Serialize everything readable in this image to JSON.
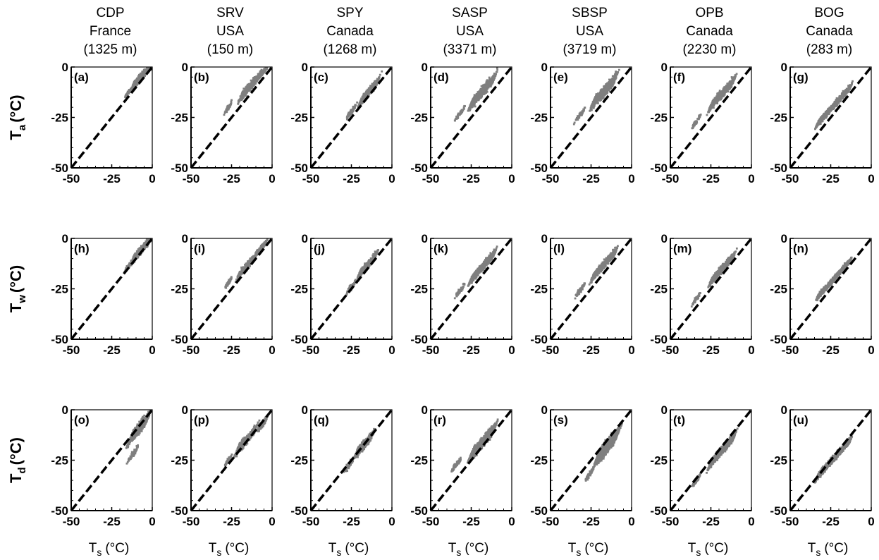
{
  "sites": [
    {
      "code": "CDP",
      "country": "France",
      "elev": "(1325 m)"
    },
    {
      "code": "SRV",
      "country": "USA",
      "elev": "(150 m)"
    },
    {
      "code": "SPY",
      "country": "Canada",
      "elev": "(1268 m)"
    },
    {
      "code": "SASP",
      "country": "USA",
      "elev": "(3371 m)"
    },
    {
      "code": "SBSP",
      "country": "USA",
      "elev": "(3719 m)"
    },
    {
      "code": "OPB",
      "country": "Canada",
      "elev": "(2230 m)"
    },
    {
      "code": "BOG",
      "country": "Canada",
      "elev": "(283 m)"
    }
  ],
  "rows": [
    {
      "ylabel": "T",
      "ysub": "a",
      "yunit": "(°C)"
    },
    {
      "ylabel": "T",
      "ysub": "w",
      "yunit": "(°C)"
    },
    {
      "ylabel": "T",
      "ysub": "d",
      "yunit": "(°C)"
    }
  ],
  "xlabel": {
    "main": "T",
    "sub": "s",
    "unit": "(°C)"
  },
  "chart_data": {
    "type": "scatter",
    "layout": "3 rows x 7 columns small multiples",
    "x_quantity": "Ts (°C)",
    "xlim": [
      -50,
      0
    ],
    "ylim": [
      -50,
      0
    ],
    "xticks": [
      "-50",
      "-25",
      "0"
    ],
    "yticks": [
      "0",
      "-25",
      "-50"
    ],
    "reference_line": {
      "style": "dashed",
      "color": "#000000",
      "from": [
        -50,
        -50
      ],
      "to": [
        0,
        0
      ]
    },
    "point_color": "#7f7f7f",
    "panels": [
      {
        "label": "(a)",
        "row": 0,
        "col": 0,
        "clusters": [
          {
            "x": -7,
            "y": -5,
            "w": 11,
            "h": 6,
            "n": 520
          },
          {
            "x": -15,
            "y": -13,
            "w": 3,
            "h": 3,
            "n": 40
          }
        ]
      },
      {
        "label": "(b)",
        "row": 0,
        "col": 1,
        "clusters": [
          {
            "x": -14,
            "y": -10,
            "w": 12,
            "h": 7,
            "n": 260
          },
          {
            "x": -6,
            "y": -3,
            "w": 5,
            "h": 3,
            "n": 220
          },
          {
            "x": -27,
            "y": -20,
            "w": 3,
            "h": 5,
            "n": 60
          }
        ]
      },
      {
        "label": "(c)",
        "row": 0,
        "col": 2,
        "clusters": [
          {
            "x": -14,
            "y": -12,
            "w": 11,
            "h": 7,
            "n": 300
          },
          {
            "x": -25,
            "y": -22,
            "w": 5,
            "h": 5,
            "n": 80
          }
        ]
      },
      {
        "label": "(d)",
        "row": 0,
        "col": 3,
        "clusters": [
          {
            "x": -18,
            "y": -12,
            "w": 15,
            "h": 8,
            "n": 620
          },
          {
            "x": -32,
            "y": -23,
            "w": 5,
            "h": 4,
            "n": 60
          }
        ]
      },
      {
        "label": "(e)",
        "row": 0,
        "col": 4,
        "clusters": [
          {
            "x": -17,
            "y": -12,
            "w": 15,
            "h": 8,
            "n": 620
          },
          {
            "x": -32,
            "y": -24,
            "w": 5,
            "h": 4,
            "n": 60
          }
        ]
      },
      {
        "label": "(f)",
        "row": 0,
        "col": 5,
        "clusters": [
          {
            "x": -18,
            "y": -13,
            "w": 15,
            "h": 7,
            "n": 520
          },
          {
            "x": -34,
            "y": -27,
            "w": 4,
            "h": 4,
            "n": 60
          }
        ]
      },
      {
        "label": "(g)",
        "row": 0,
        "col": 6,
        "clusters": [
          {
            "x": -23,
            "y": -19,
            "w": 21,
            "h": 5,
            "n": 720
          }
        ]
      },
      {
        "label": "(h)",
        "row": 1,
        "col": 0,
        "clusters": [
          {
            "x": -7,
            "y": -6,
            "w": 11,
            "h": 6,
            "n": 520
          },
          {
            "x": -15,
            "y": -14,
            "w": 3,
            "h": 3,
            "n": 40
          }
        ]
      },
      {
        "label": "(i)",
        "row": 1,
        "col": 1,
        "clusters": [
          {
            "x": -15,
            "y": -13,
            "w": 12,
            "h": 6,
            "n": 260
          },
          {
            "x": -6,
            "y": -4,
            "w": 5,
            "h": 3,
            "n": 220
          },
          {
            "x": -27,
            "y": -22,
            "w": 3,
            "h": 4,
            "n": 60
          }
        ]
      },
      {
        "label": "(j)",
        "row": 1,
        "col": 2,
        "clusters": [
          {
            "x": -15,
            "y": -13,
            "w": 11,
            "h": 6,
            "n": 300
          },
          {
            "x": -25,
            "y": -24,
            "w": 5,
            "h": 5,
            "n": 80
          }
        ]
      },
      {
        "label": "(k)",
        "row": 1,
        "col": 3,
        "clusters": [
          {
            "x": -18,
            "y": -14,
            "w": 15,
            "h": 6,
            "n": 620
          },
          {
            "x": -32,
            "y": -26,
            "w": 5,
            "h": 4,
            "n": 60
          }
        ]
      },
      {
        "label": "(l)",
        "row": 1,
        "col": 4,
        "clusters": [
          {
            "x": -17,
            "y": -13,
            "w": 15,
            "h": 6,
            "n": 620
          },
          {
            "x": -32,
            "y": -26,
            "w": 5,
            "h": 4,
            "n": 60
          }
        ]
      },
      {
        "label": "(m)",
        "row": 1,
        "col": 5,
        "clusters": [
          {
            "x": -18,
            "y": -15,
            "w": 15,
            "h": 6,
            "n": 520
          },
          {
            "x": -34,
            "y": -30,
            "w": 4,
            "h": 4,
            "n": 60
          }
        ]
      },
      {
        "label": "(n)",
        "row": 1,
        "col": 6,
        "clusters": [
          {
            "x": -23,
            "y": -20,
            "w": 21,
            "h": 4,
            "n": 720
          }
        ]
      },
      {
        "label": "(o)",
        "row": 2,
        "col": 0,
        "clusters": [
          {
            "x": -8,
            "y": -9,
            "w": 11,
            "h": 9,
            "n": 600
          },
          {
            "x": -12,
            "y": -22,
            "w": 5,
            "h": 6,
            "n": 60
          }
        ]
      },
      {
        "label": "(p)",
        "row": 2,
        "col": 1,
        "clusters": [
          {
            "x": -16,
            "y": -15,
            "w": 12,
            "h": 8,
            "n": 300
          },
          {
            "x": -6,
            "y": -7,
            "w": 5,
            "h": 5,
            "n": 200
          },
          {
            "x": -27,
            "y": -25,
            "w": 3,
            "h": 4,
            "n": 50
          }
        ]
      },
      {
        "label": "(q)",
        "row": 2,
        "col": 2,
        "clusters": [
          {
            "x": -17,
            "y": -17,
            "w": 11,
            "h": 7,
            "n": 350
          },
          {
            "x": -27,
            "y": -28,
            "w": 5,
            "h": 5,
            "n": 80
          }
        ]
      },
      {
        "label": "(r)",
        "row": 2,
        "col": 3,
        "clusters": [
          {
            "x": -18,
            "y": -16,
            "w": 15,
            "h": 9,
            "n": 820
          },
          {
            "x": -34,
            "y": -27,
            "w": 5,
            "h": 4,
            "n": 80
          }
        ]
      },
      {
        "label": "(s)",
        "row": 2,
        "col": 4,
        "clusters": [
          {
            "x": -15,
            "y": -18,
            "w": 13,
            "h": 11,
            "n": 900
          },
          {
            "x": -26,
            "y": -32,
            "w": 4,
            "h": 4,
            "n": 60
          }
        ]
      },
      {
        "label": "(t)",
        "row": 2,
        "col": 5,
        "clusters": [
          {
            "x": -18,
            "y": -20,
            "w": 15,
            "h": 7,
            "n": 650
          },
          {
            "x": -34,
            "y": -35,
            "w": 4,
            "h": 4,
            "n": 60
          }
        ]
      },
      {
        "label": "(u)",
        "row": 2,
        "col": 6,
        "clusters": [
          {
            "x": -23,
            "y": -24,
            "w": 21,
            "h": 5,
            "n": 800
          }
        ]
      }
    ]
  }
}
